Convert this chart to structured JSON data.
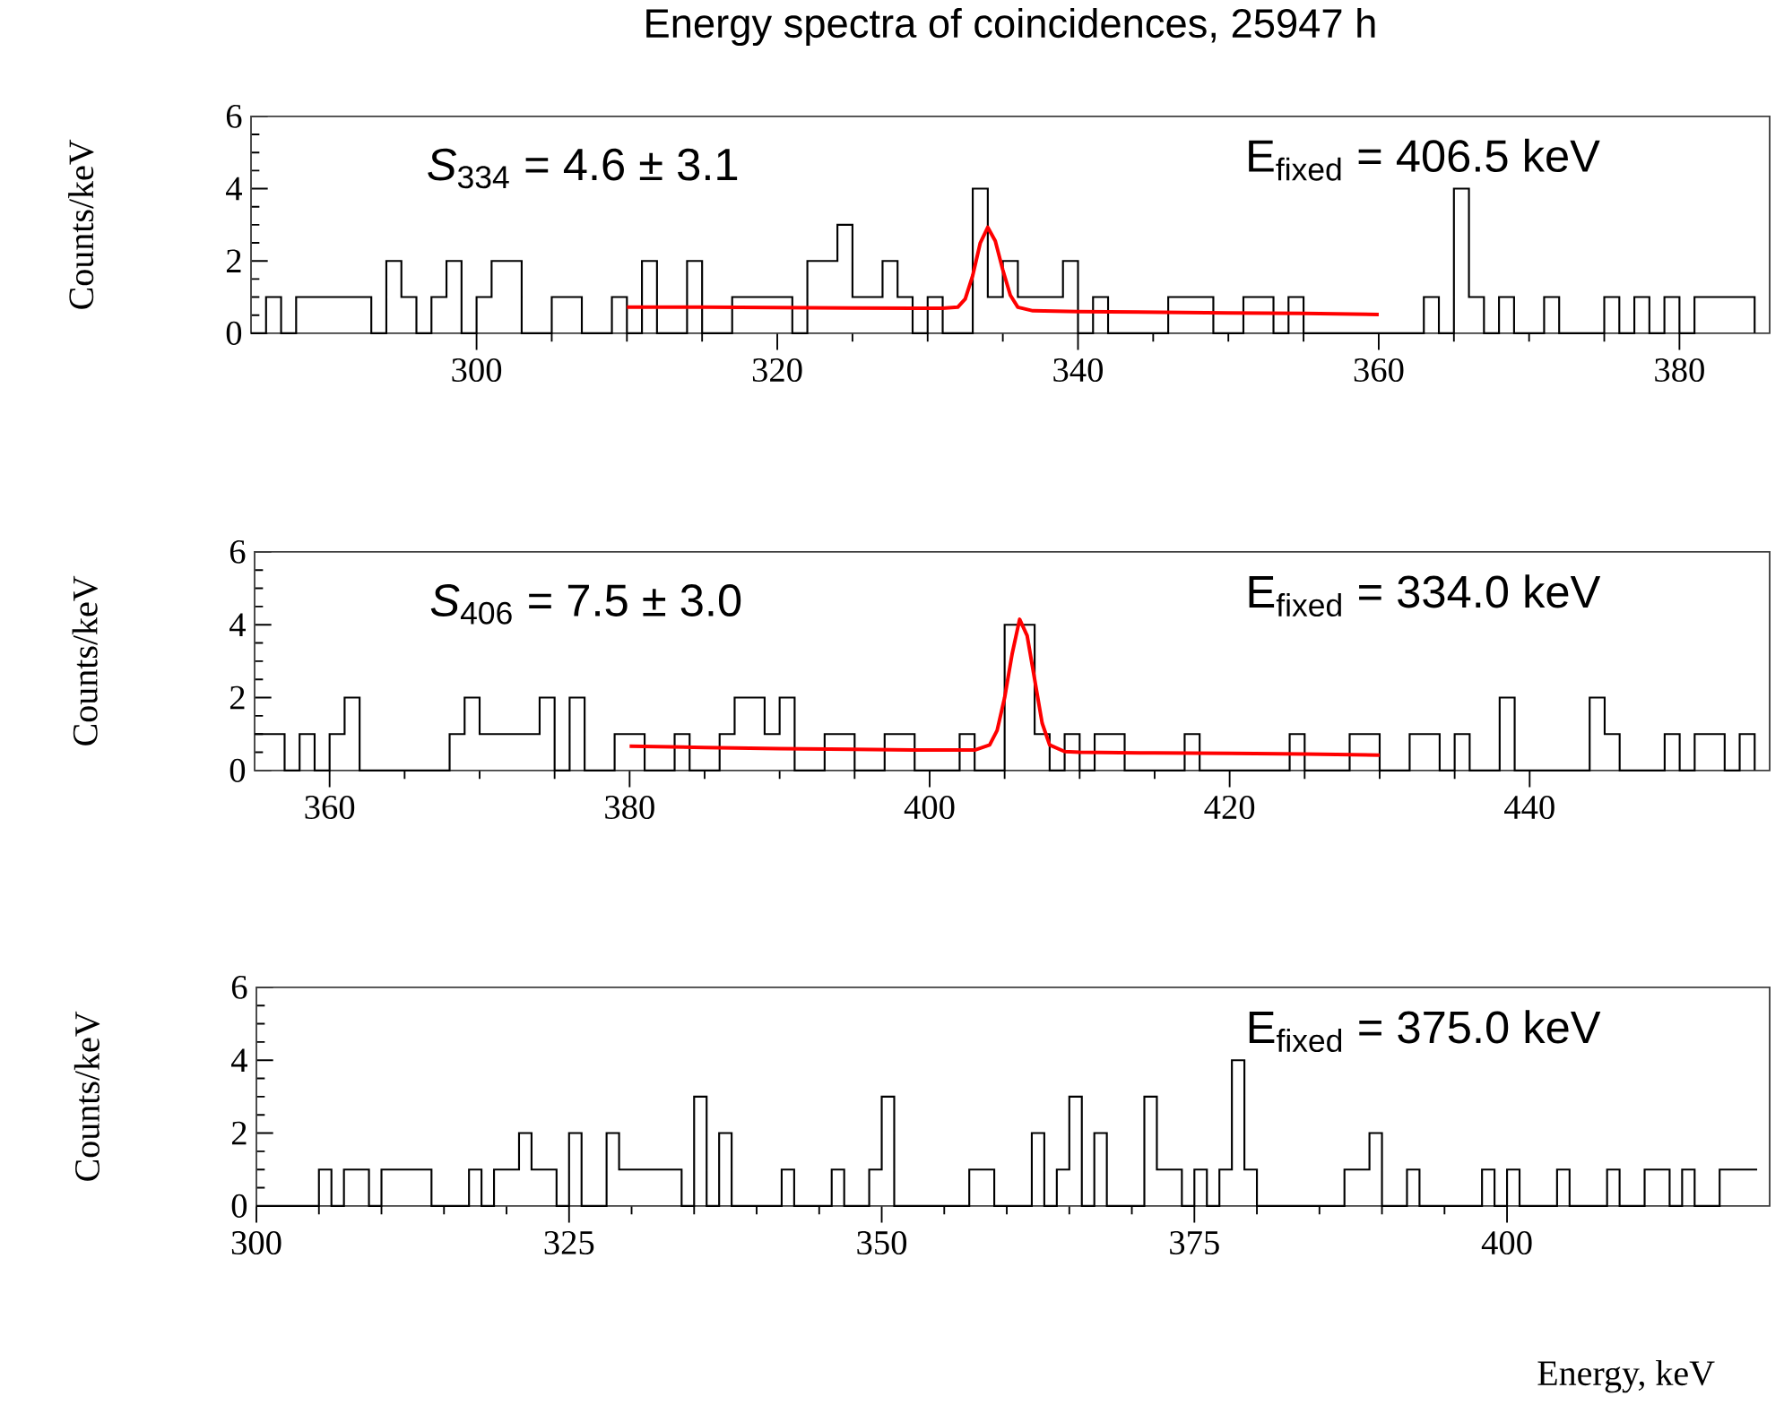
{
  "chart_data": [
    {
      "type": "step",
      "title": "Energy spectra of coincidences, 25947 h",
      "ylabel": "Counts/keV",
      "xlim": [
        285,
        386
      ],
      "ylim": [
        0,
        6
      ],
      "xticks": [
        300,
        320,
        340,
        360,
        380
      ],
      "yticks": [
        0,
        2,
        4,
        6
      ],
      "annotations": [
        "*S*$_{334}$ = 4.6 ± 3.1",
        "E$_{fixed}$ = 406.5 keV"
      ],
      "series": [
        {
          "color": "#000000",
          "x": [
            285,
            286,
            287,
            288,
            289,
            290,
            291,
            292,
            293,
            294,
            295,
            296,
            297,
            298,
            299,
            300,
            301,
            302,
            303,
            304,
            305,
            306,
            307,
            308,
            309,
            310,
            311,
            312,
            313,
            314,
            315,
            316,
            317,
            318,
            319,
            320,
            321,
            322,
            323,
            324,
            325,
            326,
            327,
            328,
            329,
            330,
            331,
            332,
            333,
            334,
            335,
            336,
            337,
            338,
            339,
            340,
            341,
            342,
            343,
            344,
            345,
            346,
            347,
            348,
            349,
            350,
            351,
            352,
            353,
            354,
            355,
            356,
            357,
            358,
            359,
            360,
            361,
            362,
            363,
            364,
            365,
            366,
            367,
            368,
            369,
            370,
            371,
            372,
            373,
            374,
            375,
            376,
            377,
            378,
            379,
            380,
            381,
            382,
            383,
            384,
            385
          ],
          "values": [
            0,
            1,
            0,
            1,
            1,
            1,
            1,
            1,
            0,
            2,
            1,
            0,
            1,
            2,
            0,
            1,
            2,
            2,
            0,
            0,
            1,
            1,
            0,
            0,
            1,
            0,
            2,
            0,
            0,
            2,
            0,
            0,
            1,
            1,
            1,
            1,
            0,
            2,
            2,
            3,
            1,
            1,
            2,
            1,
            0,
            1,
            0,
            0,
            4,
            1,
            2,
            1,
            1,
            1,
            2,
            0,
            1,
            0,
            0,
            0,
            0,
            1,
            1,
            1,
            0,
            0,
            1,
            1,
            0,
            1,
            0,
            0,
            0,
            0,
            0,
            0,
            0,
            0,
            1,
            0,
            4,
            1,
            0,
            1,
            0,
            0,
            1,
            0,
            0,
            0,
            1,
            0,
            1,
            0,
            1,
            0,
            1,
            1,
            1,
            1,
            0
          ]
        },
        {
          "type": "line",
          "color": "#ff0000",
          "x": [
            310,
            315,
            320,
            325,
            330,
            331,
            332,
            332.5,
            333,
            333.5,
            334,
            334.5,
            335,
            335.5,
            336,
            337,
            340,
            345,
            350,
            355,
            360
          ],
          "values": [
            0.72,
            0.72,
            0.71,
            0.7,
            0.69,
            0.69,
            0.72,
            0.95,
            1.6,
            2.5,
            2.93,
            2.55,
            1.75,
            1.05,
            0.72,
            0.62,
            0.6,
            0.58,
            0.56,
            0.55,
            0.52
          ]
        }
      ]
    },
    {
      "type": "step",
      "ylabel": "Counts/keV",
      "xlim": [
        355,
        456
      ],
      "ylim": [
        0,
        6
      ],
      "xticks": [
        360,
        380,
        400,
        420,
        440
      ],
      "yticks": [
        0,
        2,
        4,
        6
      ],
      "annotations": [
        "*S*$_{406}$ = 7.5 ± 3.0",
        "E$_{fixed}$ = 334.0 keV"
      ],
      "series": [
        {
          "color": "#000000",
          "x": [
            355,
            356,
            357,
            358,
            359,
            360,
            361,
            362,
            363,
            364,
            365,
            366,
            367,
            368,
            369,
            370,
            371,
            372,
            373,
            374,
            375,
            376,
            377,
            378,
            379,
            380,
            381,
            382,
            383,
            384,
            385,
            386,
            387,
            388,
            389,
            390,
            391,
            392,
            393,
            394,
            395,
            396,
            397,
            398,
            399,
            400,
            401,
            402,
            403,
            404,
            405,
            406,
            407,
            408,
            409,
            410,
            411,
            412,
            413,
            414,
            415,
            416,
            417,
            418,
            419,
            420,
            421,
            422,
            423,
            424,
            425,
            426,
            427,
            428,
            429,
            430,
            431,
            432,
            433,
            434,
            435,
            436,
            437,
            438,
            439,
            440,
            441,
            442,
            443,
            444,
            445,
            446,
            447,
            448,
            449,
            450,
            451,
            452,
            453,
            454,
            455
          ],
          "values": [
            1,
            1,
            0,
            1,
            0,
            1,
            2,
            0,
            0,
            0,
            0,
            0,
            0,
            1,
            2,
            1,
            1,
            1,
            1,
            2,
            0,
            2,
            0,
            0,
            1,
            1,
            0,
            0,
            1,
            0,
            0,
            1,
            2,
            2,
            1,
            2,
            0,
            0,
            1,
            1,
            0,
            0,
            1,
            1,
            0,
            0,
            0,
            1,
            0,
            0,
            4,
            4,
            1,
            0,
            1,
            0,
            1,
            1,
            0,
            0,
            0,
            0,
            1,
            0,
            0,
            0,
            0,
            0,
            0,
            1,
            0,
            0,
            0,
            1,
            1,
            0,
            0,
            1,
            1,
            0,
            1,
            0,
            0,
            2,
            0,
            0,
            0,
            0,
            0,
            2,
            1,
            0,
            0,
            0,
            1,
            0,
            1,
            1,
            0,
            1,
            0
          ]
        },
        {
          "type": "line",
          "color": "#ff0000",
          "x": [
            380,
            385,
            390,
            395,
            400,
            403,
            404,
            404.5,
            405,
            405.5,
            406,
            406.5,
            407,
            407.5,
            408,
            409,
            410,
            415,
            420,
            425,
            430
          ],
          "values": [
            0.67,
            0.63,
            0.6,
            0.58,
            0.56,
            0.56,
            0.7,
            1.1,
            2.0,
            3.2,
            4.15,
            3.7,
            2.5,
            1.3,
            0.7,
            0.52,
            0.5,
            0.48,
            0.47,
            0.45,
            0.42
          ]
        }
      ]
    },
    {
      "type": "step",
      "ylabel": "Counts/keV",
      "xlabel": "Energy, keV",
      "xlim": [
        300,
        421
      ],
      "ylim": [
        0,
        6
      ],
      "xticks": [
        300,
        325,
        350,
        375,
        400
      ],
      "yticks": [
        0,
        2,
        4,
        6
      ],
      "annotations": [
        "E$_{fixed}$ = 375.0 keV"
      ],
      "series": [
        {
          "color": "#000000",
          "x": [
            300,
            301,
            302,
            303,
            304,
            305,
            306,
            307,
            308,
            309,
            310,
            311,
            312,
            313,
            314,
            315,
            316,
            317,
            318,
            319,
            320,
            321,
            322,
            323,
            324,
            325,
            326,
            327,
            328,
            329,
            330,
            331,
            332,
            333,
            334,
            335,
            336,
            337,
            338,
            339,
            340,
            341,
            342,
            343,
            344,
            345,
            346,
            347,
            348,
            349,
            350,
            351,
            352,
            353,
            354,
            355,
            356,
            357,
            358,
            359,
            360,
            361,
            362,
            363,
            364,
            365,
            366,
            367,
            368,
            369,
            370,
            371,
            372,
            373,
            374,
            375,
            376,
            377,
            378,
            379,
            380,
            381,
            382,
            383,
            384,
            385,
            386,
            387,
            388,
            389,
            390,
            391,
            392,
            393,
            394,
            395,
            396,
            397,
            398,
            399,
            400,
            401,
            402,
            403,
            404,
            405,
            406,
            407,
            408,
            409,
            410,
            411,
            412,
            413,
            414,
            415,
            416,
            417,
            418,
            419,
            420
          ],
          "values": [
            0,
            0,
            0,
            0,
            0,
            1,
            0,
            1,
            1,
            0,
            1,
            1,
            1,
            1,
            0,
            0,
            0,
            1,
            0,
            1,
            1,
            2,
            1,
            1,
            0,
            2,
            0,
            0,
            2,
            1,
            1,
            1,
            1,
            1,
            0,
            3,
            0,
            2,
            0,
            0,
            0,
            0,
            1,
            0,
            0,
            0,
            1,
            0,
            0,
            1,
            3,
            0,
            0,
            0,
            0,
            0,
            0,
            1,
            1,
            0,
            0,
            0,
            2,
            0,
            1,
            3,
            0,
            2,
            0,
            0,
            0,
            3,
            1,
            1,
            0,
            1,
            0,
            1,
            4,
            1,
            0,
            0,
            0,
            0,
            0,
            0,
            0,
            1,
            1,
            2,
            0,
            0,
            1,
            0,
            0,
            0,
            0,
            0,
            1,
            0,
            1,
            0,
            0,
            0,
            1,
            0,
            0,
            0,
            1,
            0,
            0,
            1,
            1,
            0,
            1,
            0,
            0,
            1,
            1,
            1,
            1
          ]
        }
      ]
    }
  ]
}
